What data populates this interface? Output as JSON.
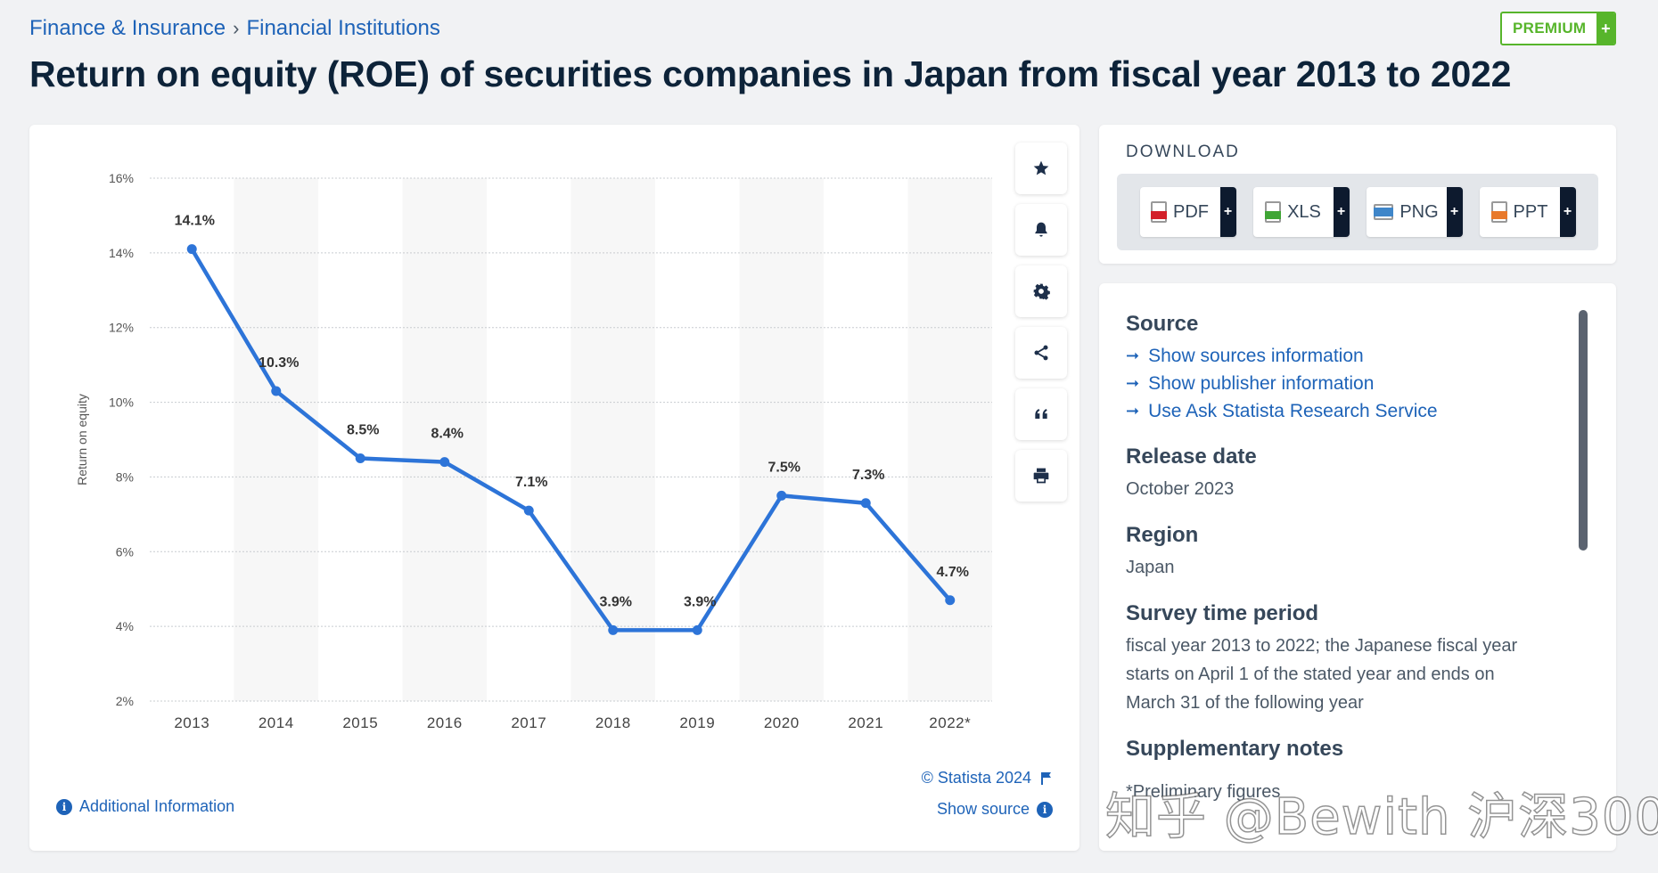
{
  "breadcrumb": {
    "items": [
      "Finance & Insurance",
      "Financial Institutions"
    ],
    "separator": "›"
  },
  "premium": {
    "label": "PREMIUM",
    "plus": "+"
  },
  "page_title": "Return on equity (ROE) of securities companies in Japan from fiscal year 2013 to 2022",
  "chart_data": {
    "type": "line",
    "categories": [
      "2013",
      "2014",
      "2015",
      "2016",
      "2017",
      "2018",
      "2019",
      "2020",
      "2021",
      "2022*"
    ],
    "series": [
      {
        "values": [
          14.1,
          10.3,
          8.5,
          8.4,
          7.1,
          3.9,
          3.9,
          7.5,
          7.3,
          4.7
        ]
      }
    ],
    "data_labels": [
      "14.1%",
      "10.3%",
      "8.5%",
      "8.4%",
      "7.1%",
      "3.9%",
      "3.9%",
      "7.5%",
      "7.3%",
      "4.7%"
    ],
    "ylabel": "Return on equity",
    "xlabel": "",
    "ylim": [
      2,
      16
    ],
    "yticks": [
      2,
      4,
      6,
      8,
      10,
      12,
      14,
      16
    ],
    "ytick_labels": [
      "2%",
      "4%",
      "6%",
      "8%",
      "10%",
      "12%",
      "14%",
      "16%"
    ],
    "grid": true,
    "alternate_column_bands": true,
    "colors": {
      "line": "#2d74d8",
      "band": "#f7f7f7",
      "grid": "#c8ccd0"
    }
  },
  "toolbar": {
    "icons": [
      "star-icon",
      "bell-icon",
      "gear-icon",
      "share-icon",
      "quote-icon",
      "print-icon"
    ]
  },
  "chart_footer": {
    "copyright": "© Statista 2024",
    "show_source": "Show source",
    "additional_info": "Additional Information"
  },
  "download": {
    "title": "DOWNLOAD",
    "buttons": [
      {
        "label": "PDF",
        "color": "#d3202a"
      },
      {
        "label": "XLS",
        "color": "#3fa535"
      },
      {
        "label": "PNG",
        "color": "#3f86c9"
      },
      {
        "label": "PPT",
        "color": "#e8792b"
      }
    ],
    "plus": "+"
  },
  "info": {
    "source_heading": "Source",
    "source_links": [
      "Show sources information",
      "Show publisher information",
      "Use Ask Statista Research Service"
    ],
    "release_heading": "Release date",
    "release_value": "October 2023",
    "region_heading": "Region",
    "region_value": "Japan",
    "survey_heading": "Survey time period",
    "survey_value": "fiscal year 2013 to 2022; the Japanese fiscal year starts on April 1 of the stated year and ends on March 31 of the following year",
    "notes_heading": "Supplementary notes",
    "notes_value": "*Preliminary figures"
  },
  "watermark": "知乎 @Bewith 沪深300"
}
